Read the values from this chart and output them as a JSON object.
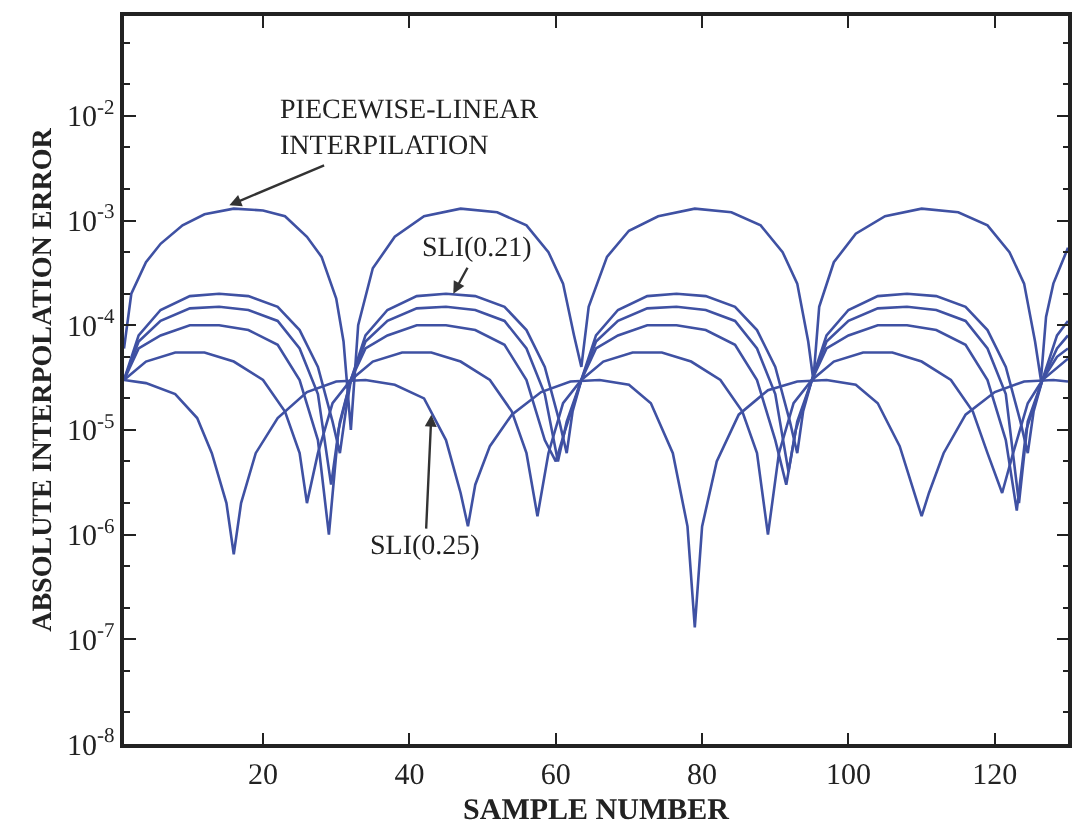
{
  "chart_data": {
    "type": "line",
    "xlabel": "SAMPLE NUMBER",
    "ylabel": "ABSOLUTE INTERPOLATION ERROR",
    "log": "y",
    "marker": "none",
    "line_style": "solid",
    "xlim": [
      1,
      130
    ],
    "ylim": [
      1e-08,
      0.09
    ],
    "xticks": [
      20,
      40,
      60,
      80,
      100,
      120
    ],
    "yticks": [
      {
        "value": 1e-08,
        "label": "10$^{-8}$"
      },
      {
        "value": 1e-07,
        "label": "10$^{-7}$"
      },
      {
        "value": 1e-06,
        "label": "10$^{-6}$"
      },
      {
        "value": 1e-05,
        "label": "10$^{-5}$"
      },
      {
        "value": 0.0001,
        "label": "10$^{-4}$"
      },
      {
        "value": 0.001,
        "label": "10$^{-3}$"
      },
      {
        "value": 0.01,
        "label": "10$^{-2}$"
      }
    ],
    "series": [
      {
        "color": "#3f51a3",
        "x": [
          1,
          2,
          4,
          6,
          9,
          12,
          16,
          20,
          23,
          26,
          28,
          30,
          31,
          32,
          33,
          35,
          38,
          42,
          47,
          52,
          56,
          59,
          61,
          62.5,
          63.5,
          64.5,
          67,
          70,
          74,
          79,
          84,
          88,
          91,
          93,
          94.5,
          95.2,
          96,
          98,
          101,
          105,
          110,
          115,
          119,
          122,
          124,
          125.5,
          126.3,
          127,
          128,
          130
        ],
        "values": [
          6e-05,
          0.0002,
          0.0004,
          0.0006,
          0.0009,
          0.00115,
          0.0013,
          0.00125,
          0.0011,
          0.0007,
          0.00045,
          0.00018,
          7e-05,
          1e-05,
          0.0001,
          0.00035,
          0.0007,
          0.0011,
          0.0013,
          0.0012,
          0.0009,
          0.0005,
          0.00025,
          8e-05,
          4e-05,
          0.00015,
          0.00045,
          0.0008,
          0.0011,
          0.0013,
          0.0012,
          0.0009,
          0.0005,
          0.00025,
          7e-05,
          3e-05,
          0.00015,
          0.0004,
          0.00075,
          0.0011,
          0.0013,
          0.0012,
          0.0009,
          0.0005,
          0.00025,
          7e-05,
          3e-05,
          0.00012,
          0.00025,
          0.00055
        ]
      },
      {
        "color": "#3f51a3",
        "x": [
          1,
          3,
          6,
          10,
          14,
          18,
          22,
          25,
          27.5,
          29.5,
          30.5,
          31.3,
          32,
          34,
          37,
          41,
          45,
          49,
          53,
          56,
          58.5,
          60.5,
          61.5,
          62.3,
          63.5,
          65.5,
          68.5,
          72.5,
          76.5,
          80.5,
          84.5,
          87.5,
          90,
          92,
          93,
          93.8,
          95,
          97,
          100,
          104,
          108,
          112,
          116,
          119,
          121.5,
          123.5,
          124.5,
          125.3,
          126.5,
          128.5,
          130
        ],
        "values": [
          3e-05,
          8e-05,
          0.00014,
          0.00019,
          0.0002,
          0.00019,
          0.00015,
          9e-05,
          4e-05,
          1.2e-05,
          6e-06,
          1.5e-05,
          3e-05,
          8e-05,
          0.00014,
          0.00019,
          0.0002,
          0.00019,
          0.00015,
          9e-05,
          4e-05,
          1.2e-05,
          6e-06,
          1.5e-05,
          3e-05,
          8e-05,
          0.00014,
          0.00019,
          0.0002,
          0.00019,
          0.00015,
          9e-05,
          4e-05,
          1.2e-05,
          6e-06,
          1.5e-05,
          3e-05,
          8e-05,
          0.00014,
          0.00019,
          0.0002,
          0.00019,
          0.00015,
          9e-05,
          4e-05,
          1.2e-05,
          6e-06,
          1.5e-05,
          3e-05,
          8e-05,
          0.00011
        ]
      },
      {
        "color": "#3f51a3",
        "x": [
          1,
          3,
          6,
          10,
          14,
          18,
          22,
          25,
          27.5,
          29.3,
          30.5,
          32,
          34,
          37,
          41,
          45,
          49,
          53,
          56,
          58.5,
          60.3,
          61.5,
          63.5,
          65.5,
          68.5,
          72.5,
          76.5,
          80.5,
          84.5,
          87.5,
          90,
          91.8,
          93,
          95,
          97,
          100,
          104,
          108,
          112,
          116,
          119,
          121.5,
          123.3,
          124.5,
          126.5,
          128.5,
          130
        ],
        "values": [
          3e-05,
          7e-05,
          0.00011,
          0.000145,
          0.00015,
          0.00014,
          0.00011,
          6e-05,
          2.2e-05,
          3e-06,
          1.2e-05,
          3e-05,
          7e-05,
          0.00011,
          0.000145,
          0.00015,
          0.00014,
          0.00011,
          6e-05,
          2.2e-05,
          5e-06,
          1.2e-05,
          3e-05,
          7e-05,
          0.00011,
          0.000145,
          0.00015,
          0.00014,
          0.00011,
          6e-05,
          2.2e-05,
          4e-06,
          1.2e-05,
          3e-05,
          7e-05,
          0.00011,
          0.000145,
          0.00015,
          0.00014,
          0.00011,
          6e-05,
          2.2e-05,
          2e-06,
          1.2e-05,
          3e-05,
          6e-05,
          8e-05
        ]
      },
      {
        "color": "#3f51a3",
        "x": [
          1,
          3,
          6,
          10,
          14,
          18,
          22,
          25,
          27.5,
          29,
          30.3,
          32,
          34,
          37,
          41,
          45,
          49,
          53,
          56,
          58.5,
          60,
          61.3,
          63.5,
          65.5,
          68.5,
          72.5,
          76.5,
          80.5,
          84.5,
          87.5,
          90,
          91.5,
          92.8,
          95,
          97,
          100,
          104,
          108,
          112,
          116,
          119,
          121.5,
          123,
          124.3,
          126.5,
          128.5,
          130
        ],
        "values": [
          3e-05,
          6e-05,
          8e-05,
          0.0001,
          0.0001,
          9e-05,
          6.5e-05,
          3e-05,
          8e-06,
          1e-06,
          1e-05,
          3e-05,
          6e-05,
          8e-05,
          0.0001,
          0.0001,
          9e-05,
          6.5e-05,
          3e-05,
          8e-06,
          5e-06,
          1e-05,
          3e-05,
          6e-05,
          8e-05,
          0.0001,
          0.0001,
          9e-05,
          6.5e-05,
          3e-05,
          8e-06,
          3e-06,
          1e-05,
          3e-05,
          6e-05,
          8e-05,
          0.0001,
          0.0001,
          9e-05,
          6.5e-05,
          3e-05,
          8e-06,
          1.7e-06,
          1e-05,
          3e-05,
          5e-05,
          6e-05
        ]
      },
      {
        "color": "#3f51a3",
        "x": [
          1,
          4,
          8,
          12,
          16,
          20,
          23,
          25,
          26,
          27.5,
          29.5,
          32,
          35,
          39,
          43,
          47,
          51,
          54,
          56,
          57.5,
          59,
          61,
          63.5,
          66.5,
          70.5,
          74.5,
          78.5,
          82.5,
          85.5,
          87.5,
          89,
          90.5,
          92.5,
          95,
          98,
          102,
          106,
          110,
          114,
          117,
          119,
          121,
          122.5,
          124.5,
          126.5,
          130
        ],
        "values": [
          3e-05,
          4.5e-05,
          5.5e-05,
          5.5e-05,
          4.5e-05,
          3e-05,
          1.5e-05,
          6e-06,
          2e-06,
          6e-06,
          1.8e-05,
          3e-05,
          4.5e-05,
          5.5e-05,
          5.5e-05,
          4.5e-05,
          3e-05,
          1.5e-05,
          6e-06,
          1.5e-06,
          6e-06,
          1.8e-05,
          3e-05,
          4.5e-05,
          5.5e-05,
          5.5e-05,
          4.5e-05,
          3e-05,
          1.5e-05,
          6e-06,
          1e-06,
          6e-06,
          1.8e-05,
          3e-05,
          4.5e-05,
          5.5e-05,
          5.5e-05,
          4.5e-05,
          3e-05,
          1.5e-05,
          6e-06,
          2.5e-06,
          6e-06,
          1.8e-05,
          3e-05,
          4.8e-05
        ]
      },
      {
        "color": "#3f51a3",
        "x": [
          1,
          4,
          8,
          11,
          13,
          15,
          16,
          17,
          19,
          22,
          26,
          30,
          34,
          38,
          42,
          45,
          47,
          48,
          49,
          51,
          54,
          58,
          62,
          66,
          70,
          73,
          76,
          78,
          79,
          80,
          82,
          85,
          89,
          93,
          97,
          101,
          104,
          107,
          109,
          110,
          111,
          113,
          116,
          120,
          124,
          128,
          130
        ],
        "values": [
          3e-05,
          2.8e-05,
          2.2e-05,
          1.3e-05,
          6e-06,
          2e-06,
          6.5e-07,
          2e-06,
          6e-06,
          1.3e-05,
          2.3e-05,
          2.9e-05,
          3e-05,
          2.7e-05,
          2e-05,
          8e-06,
          2.5e-06,
          1.2e-06,
          3e-06,
          7e-06,
          1.4e-05,
          2.3e-05,
          2.9e-05,
          3e-05,
          2.7e-05,
          1.8e-05,
          6e-06,
          1.2e-06,
          1.3e-07,
          1.2e-06,
          5e-06,
          1.4e-05,
          2.4e-05,
          2.9e-05,
          3e-05,
          2.7e-05,
          1.8e-05,
          7e-06,
          2.5e-06,
          1.5e-06,
          2.5e-06,
          6e-06,
          1.4e-05,
          2.3e-05,
          2.9e-05,
          3e-05,
          2.9e-05
        ]
      }
    ],
    "annotations": [
      {
        "text": "PIECEWISE-LINEAR\nINTERPILATION",
        "x": 15.4,
        "y": 0.0014
      },
      {
        "text": "SLI(0.21)",
        "x": 46,
        "y": 0.0002
      },
      {
        "text": "SLI(0.25)",
        "x": 43,
        "y": 1.4e-05
      }
    ]
  }
}
